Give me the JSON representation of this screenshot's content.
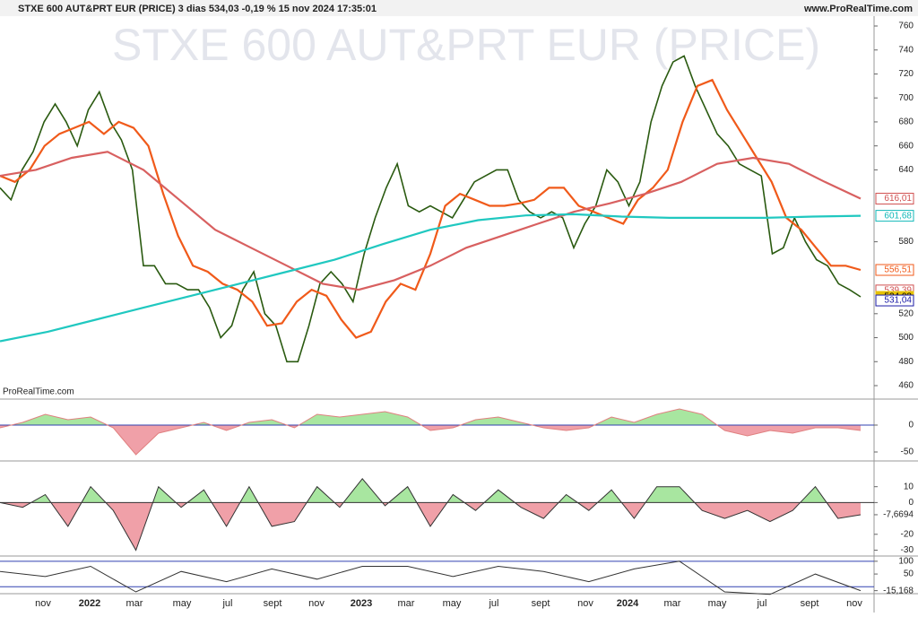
{
  "header": {
    "title": "STXE 600 AUT&PRT EUR (PRICE) 3 dias 534,03 -0,19 % 15 nov 2024 17:35:01",
    "site": "www.ProRealTime.com"
  },
  "watermark": "STXE 600 AUT&PRT EUR (PRICE)",
  "brand": "ProRealTime.com",
  "xlabels": [
    "nov",
    "2022",
    "mar",
    "may",
    "jul",
    "sept",
    "nov",
    "2023",
    "mar",
    "may",
    "jul",
    "sept",
    "nov",
    "2024",
    "mar",
    "may",
    "jul",
    "sept",
    "nov"
  ],
  "chart_data": [
    {
      "type": "line",
      "ylim": [
        460,
        760
      ],
      "yticks": [
        460,
        480,
        500,
        520,
        580,
        640,
        660,
        680,
        700,
        720,
        740,
        760
      ],
      "price_tags": [
        {
          "value": 616.01,
          "label": "616,01",
          "color": "#d05050"
        },
        {
          "value": 601.68,
          "label": "601,68",
          "color": "#10b8b8"
        },
        {
          "value": 556.51,
          "label": "556,51",
          "color": "#f05a1a"
        },
        {
          "value": 539.39,
          "label": "539,39",
          "color": "#d05050"
        },
        {
          "value": 534.03,
          "label": "534,03",
          "color": "#e6c200"
        },
        {
          "value": 531.04,
          "label": "531,04",
          "color": "#1a1aa6"
        }
      ],
      "series": [
        {
          "name": "close",
          "color": "#2a5a10",
          "values": [
            625,
            615,
            640,
            655,
            680,
            695,
            680,
            660,
            690,
            705,
            680,
            665,
            640,
            560,
            560,
            545,
            545,
            540,
            540,
            525,
            500,
            510,
            540,
            555,
            520,
            510,
            480,
            480,
            510,
            545,
            555,
            545,
            530,
            570,
            600,
            625,
            645,
            610,
            605,
            610,
            605,
            600,
            615,
            630,
            635,
            640,
            640,
            615,
            605,
            600,
            605,
            600,
            575,
            595,
            610,
            640,
            630,
            610,
            630,
            680,
            710,
            730,
            735,
            710,
            690,
            670,
            660,
            645,
            640,
            635,
            570,
            575,
            600,
            580,
            565,
            560,
            545,
            540,
            534.03
          ]
        },
        {
          "name": "ma-fast",
          "color": "#f05a1a",
          "values": [
            635,
            630,
            640,
            660,
            670,
            675,
            680,
            670,
            680,
            675,
            660,
            620,
            585,
            560,
            555,
            545,
            540,
            530,
            510,
            512,
            530,
            540,
            535,
            515,
            500,
            505,
            530,
            545,
            540,
            570,
            610,
            620,
            615,
            610,
            610,
            612,
            615,
            625,
            625,
            610,
            605,
            600,
            595,
            615,
            625,
            640,
            680,
            710,
            715,
            690,
            670,
            650,
            630,
            600,
            590,
            575,
            560,
            560,
            556.51
          ]
        },
        {
          "name": "ma-long",
          "color": "#d86060",
          "values": [
            635,
            640,
            650,
            655,
            640,
            615,
            590,
            575,
            560,
            545,
            540,
            548,
            560,
            575,
            585,
            595,
            605,
            612,
            620,
            630,
            645,
            650,
            645,
            630,
            616.01
          ]
        },
        {
          "name": "ma-verylong",
          "color": "#20c8c0",
          "values": [
            497,
            505,
            515,
            525,
            535,
            545,
            555,
            565,
            578,
            590,
            598,
            602,
            603,
            601,
            600,
            600,
            600,
            601,
            601.68
          ]
        }
      ]
    },
    {
      "type": "area",
      "ylim": [
        -60,
        25
      ],
      "yticks": [
        0,
        -50
      ],
      "values": [
        -5,
        5,
        20,
        10,
        15,
        -5,
        -55,
        -15,
        -5,
        5,
        -10,
        5,
        10,
        -5,
        20,
        15,
        20,
        25,
        15,
        -10,
        -5,
        10,
        15,
        5,
        -5,
        -10,
        -5,
        15,
        5,
        20,
        30,
        20,
        -10,
        -20,
        -10,
        -15,
        -5,
        -5,
        -10
      ]
    },
    {
      "type": "area",
      "ylim": [
        -32,
        20
      ],
      "yticks": [
        10,
        0,
        -20,
        -30,
        {
          "value": -7.6694,
          "label": "-7,6694"
        }
      ],
      "values": [
        0,
        -3,
        5,
        -15,
        10,
        -5,
        -30,
        10,
        -3,
        8,
        -15,
        10,
        -15,
        -12,
        10,
        -3,
        15,
        -2,
        10,
        -15,
        5,
        -5,
        8,
        -3,
        -10,
        5,
        -5,
        8,
        -10,
        10,
        10,
        -5,
        -10,
        -5,
        -12,
        -5,
        10,
        -10,
        -7.6694
      ]
    },
    {
      "type": "line",
      "ylim": [
        -20,
        110
      ],
      "yticks": [
        100,
        50,
        {
          "value": -15.168,
          "label": "-15,168"
        }
      ],
      "values": [
        60,
        40,
        80,
        -20,
        60,
        20,
        70,
        30,
        80,
        80,
        40,
        80,
        60,
        20,
        70,
        100,
        -20,
        -30,
        50,
        -15.168
      ]
    }
  ]
}
